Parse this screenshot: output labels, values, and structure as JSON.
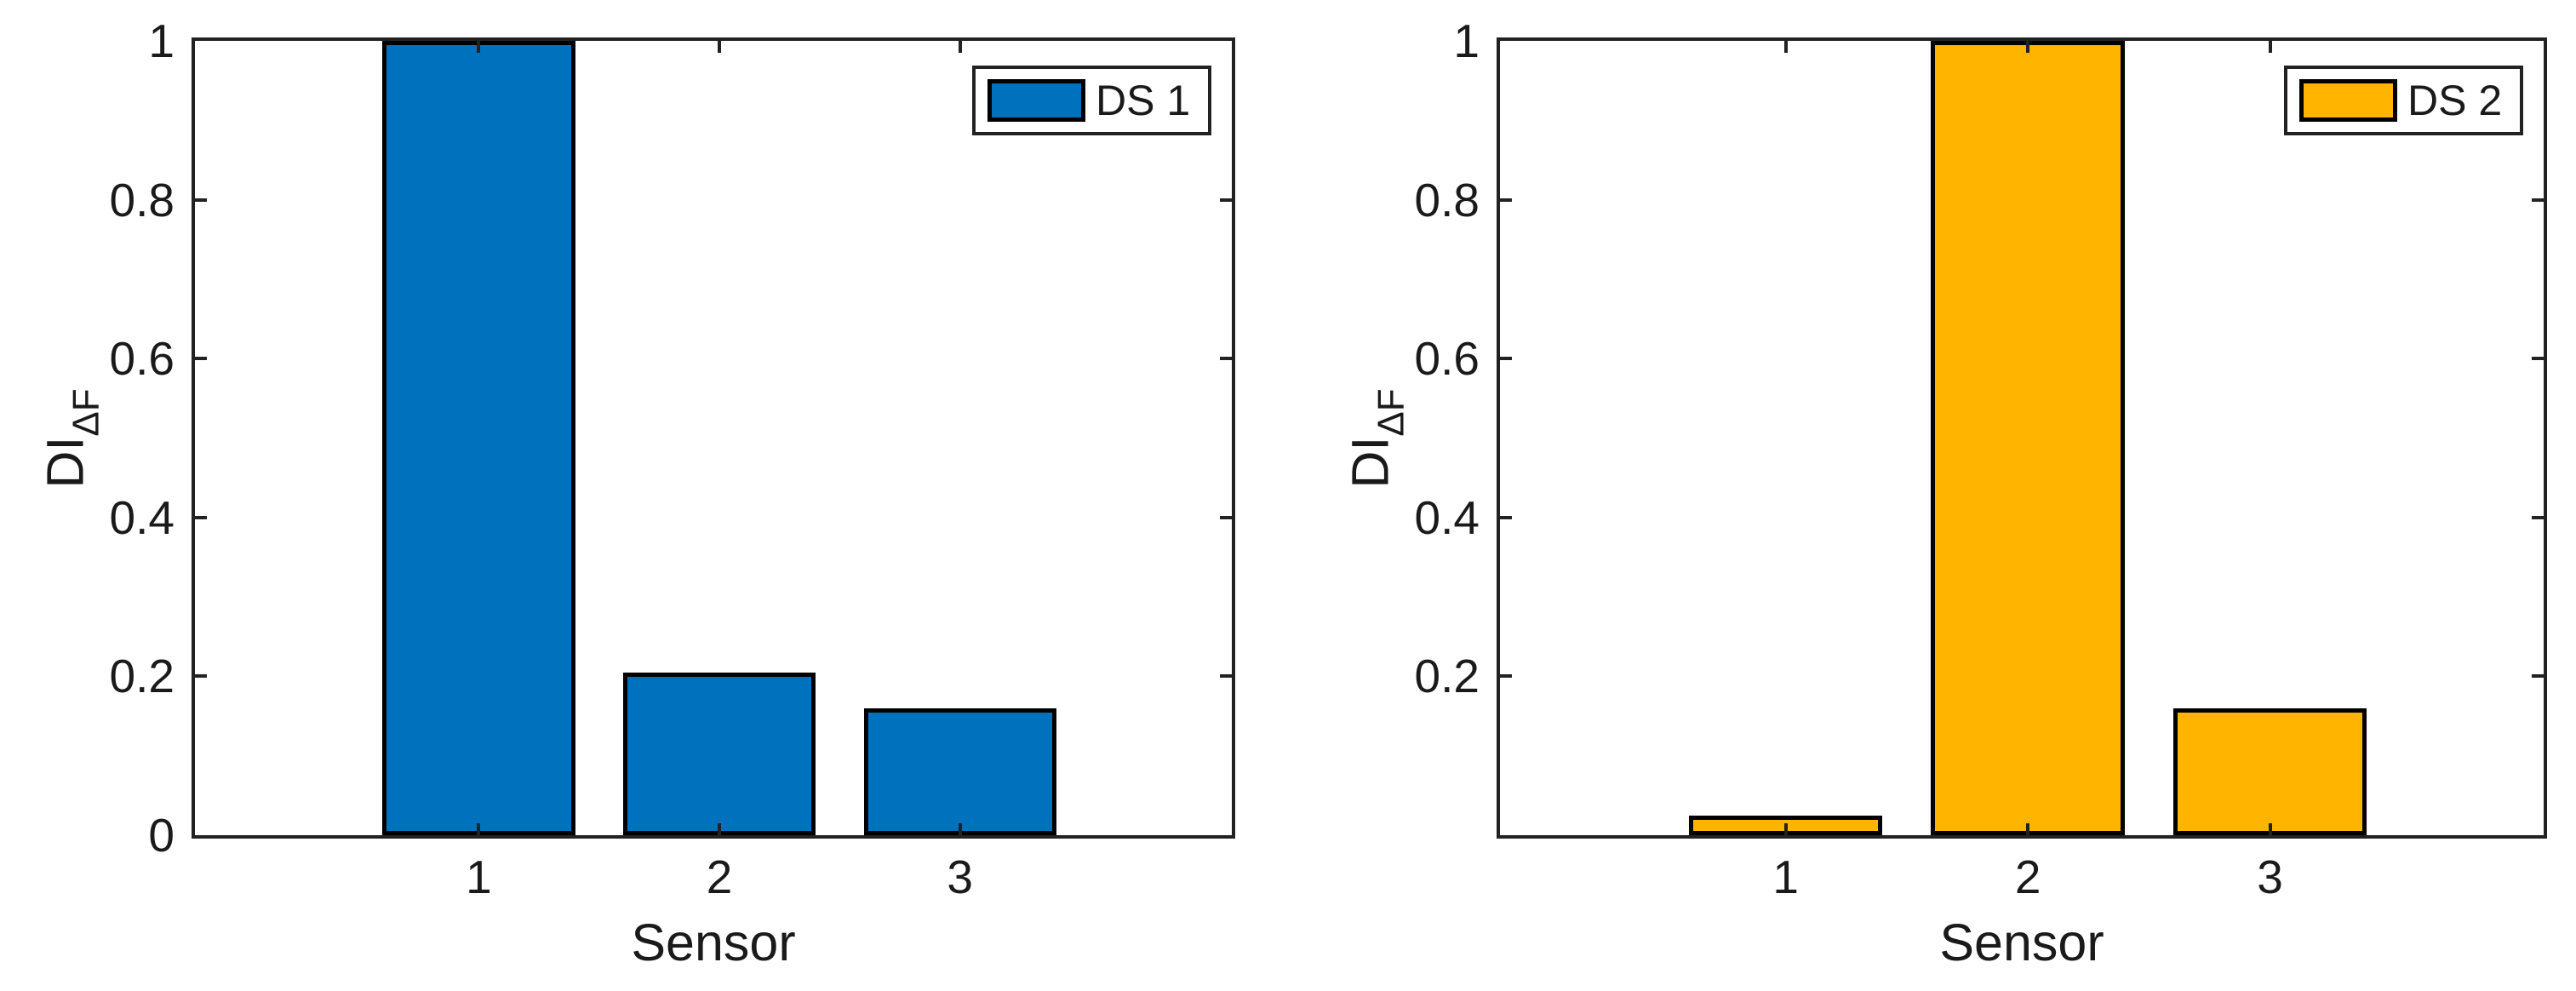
{
  "figure": {
    "background": "#ffffff",
    "axis_color": "#222222",
    "text_color": "#1a1a1a"
  },
  "chart_data": [
    {
      "type": "bar",
      "title": "",
      "categories": [
        "1",
        "2",
        "3"
      ],
      "x": [
        1,
        2,
        3
      ],
      "values": [
        1,
        0.205,
        0.16
      ],
      "series_name": "DS 1",
      "xlabel": "Sensor",
      "ylabel": "DI",
      "ylabel_subscript": "ΔF",
      "xlim": [
        -0.18,
        4.13
      ],
      "ylim": [
        0,
        1
      ],
      "yticks": [
        0,
        0.2,
        0.4,
        0.6,
        0.8,
        1
      ],
      "ytick_labels": [
        "0",
        "0.2",
        "0.4",
        "0.6",
        "0.8",
        "1"
      ],
      "bar_width_units": 0.8,
      "bar_color": "#0072BD",
      "bar_edge_color": "#000000",
      "grid": false,
      "legend": {
        "label": "DS 1",
        "position": "top-right"
      }
    },
    {
      "type": "bar",
      "title": "",
      "categories": [
        "1",
        "2",
        "3"
      ],
      "x": [
        1,
        2,
        3
      ],
      "values": [
        0.025,
        1,
        0.16
      ],
      "series_name": "DS 2",
      "xlabel": "Sensor",
      "ylabel": "DI",
      "ylabel_subscript": "ΔF",
      "xlim": [
        -0.18,
        4.13
      ],
      "ylim": [
        0,
        1
      ],
      "yticks": [
        0.2,
        0.4,
        0.6,
        0.8,
        1
      ],
      "ytick_labels": [
        "0.2",
        "0.4",
        "0.6",
        "0.8",
        "1"
      ],
      "bar_width_units": 0.8,
      "bar_color": "#FFB400",
      "bar_edge_color": "#000000",
      "grid": false,
      "legend": {
        "label": "DS 2",
        "position": "top-right"
      }
    }
  ]
}
